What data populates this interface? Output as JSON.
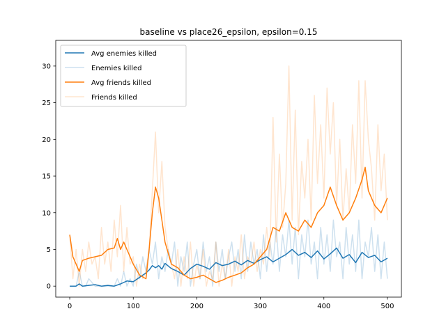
{
  "chart_data": {
    "type": "line",
    "title": "baseline vs place26_epsilon, epsilon=0.15",
    "xlabel": "",
    "ylabel": "",
    "xlim": [
      -22,
      522
    ],
    "ylim": [
      -1.5,
      33.5
    ],
    "xticks": [
      0,
      100,
      200,
      300,
      400,
      500
    ],
    "yticks": [
      0,
      5,
      10,
      15,
      20,
      25,
      30
    ],
    "grid": false,
    "legend_position": "upper-left",
    "series": [
      {
        "name": "Avg enemies killed",
        "color": "#1f77b4",
        "opacity": 1,
        "width": 1.5,
        "x": [
          0,
          10,
          15,
          20,
          30,
          40,
          50,
          60,
          70,
          80,
          90,
          100,
          110,
          120,
          125,
          130,
          135,
          140,
          145,
          150,
          160,
          170,
          180,
          190,
          200,
          210,
          220,
          230,
          240,
          250,
          260,
          270,
          280,
          290,
          300,
          310,
          320,
          330,
          340,
          350,
          360,
          370,
          380,
          390,
          400,
          410,
          420,
          430,
          440,
          450,
          460,
          470,
          480,
          490,
          500
        ],
        "values": [
          0,
          0,
          0.3,
          0,
          0.1,
          0.2,
          0,
          0.1,
          0,
          0.3,
          0.7,
          0.6,
          1.2,
          1.8,
          2.2,
          2.8,
          2.5,
          2.8,
          2.3,
          3.1,
          2.4,
          2.0,
          1.5,
          2.4,
          3.0,
          2.7,
          2.3,
          3.2,
          2.8,
          3.0,
          3.4,
          2.9,
          3.5,
          3.1,
          3.6,
          4.0,
          3.3,
          3.8,
          4.3,
          5.0,
          4.2,
          4.6,
          3.9,
          4.8,
          3.7,
          4.4,
          5.2,
          3.8,
          4.3,
          3.2,
          4.6,
          3.9,
          4.2,
          3.3,
          3.8
        ]
      },
      {
        "name": "Enemies killed",
        "color": "#1f77b4",
        "opacity": 0.22,
        "width": 1.5,
        "x": [
          0,
          10,
          15,
          20,
          25,
          30,
          40,
          50,
          60,
          70,
          75,
          80,
          85,
          90,
          95,
          100,
          105,
          110,
          115,
          120,
          125,
          130,
          135,
          140,
          145,
          150,
          155,
          160,
          165,
          170,
          175,
          180,
          185,
          190,
          195,
          200,
          205,
          210,
          215,
          220,
          225,
          230,
          235,
          240,
          245,
          250,
          255,
          260,
          265,
          270,
          275,
          280,
          285,
          290,
          295,
          300,
          305,
          310,
          315,
          320,
          325,
          330,
          335,
          340,
          345,
          350,
          355,
          360,
          365,
          370,
          375,
          380,
          385,
          390,
          395,
          400,
          405,
          410,
          415,
          420,
          425,
          430,
          435,
          440,
          445,
          450,
          455,
          460,
          465,
          470,
          475,
          480,
          485,
          490,
          495,
          500
        ],
        "values": [
          0,
          0,
          2,
          0,
          0,
          1,
          0,
          0,
          0,
          0,
          1,
          0,
          2,
          0,
          1,
          0,
          3,
          1,
          4,
          2,
          5,
          3,
          6,
          1,
          4,
          2,
          5,
          3,
          6,
          0,
          4,
          2,
          6,
          0,
          3,
          5,
          1,
          6,
          2,
          4,
          0,
          6,
          2,
          5,
          1,
          4,
          6,
          2,
          5,
          1,
          7,
          2,
          6,
          3,
          5,
          1,
          7,
          2,
          6,
          3,
          8,
          2,
          7,
          4,
          9,
          3,
          8,
          1,
          7,
          4,
          9,
          3,
          6,
          1,
          8,
          3,
          7,
          2,
          9,
          4,
          6,
          1,
          8,
          3,
          7,
          2,
          9,
          1,
          6,
          4,
          8,
          2,
          7,
          1,
          6,
          1
        ]
      },
      {
        "name": "Avg friends killed",
        "color": "#ff7f0e",
        "opacity": 1,
        "width": 1.5,
        "x": [
          0,
          5,
          10,
          15,
          20,
          30,
          40,
          50,
          60,
          70,
          75,
          80,
          85,
          90,
          95,
          100,
          110,
          120,
          125,
          130,
          135,
          140,
          145,
          150,
          160,
          170,
          180,
          190,
          200,
          210,
          220,
          230,
          240,
          250,
          260,
          270,
          280,
          290,
          300,
          310,
          320,
          330,
          340,
          350,
          360,
          370,
          380,
          390,
          400,
          410,
          420,
          430,
          440,
          450,
          460,
          465,
          470,
          480,
          490,
          500
        ],
        "values": [
          7,
          4,
          3,
          2,
          3.5,
          3.8,
          4,
          4.2,
          5,
          5.2,
          6.5,
          5,
          6,
          5,
          4,
          3,
          1.5,
          1,
          5,
          10,
          13.5,
          12,
          9,
          6,
          3,
          2.5,
          1.5,
          1,
          1.2,
          1.5,
          1,
          0.5,
          0.8,
          1.2,
          1.5,
          1.8,
          2.5,
          3,
          4,
          5,
          8,
          7.5,
          10,
          8,
          7.5,
          9,
          8,
          10,
          11,
          13.5,
          11,
          9,
          10,
          12,
          14.5,
          16.2,
          13,
          11,
          10,
          12
        ]
      },
      {
        "name": "Friends killed",
        "color": "#ff7f0e",
        "opacity": 0.2,
        "width": 1.5,
        "x": [
          0,
          5,
          10,
          15,
          20,
          25,
          30,
          35,
          40,
          45,
          50,
          55,
          60,
          65,
          70,
          75,
          80,
          85,
          90,
          95,
          100,
          105,
          110,
          115,
          120,
          125,
          130,
          135,
          140,
          145,
          150,
          155,
          160,
          165,
          170,
          175,
          180,
          185,
          190,
          195,
          200,
          205,
          210,
          215,
          220,
          225,
          230,
          235,
          240,
          245,
          250,
          255,
          260,
          265,
          270,
          275,
          280,
          285,
          290,
          295,
          300,
          305,
          310,
          315,
          320,
          325,
          330,
          335,
          340,
          345,
          350,
          355,
          360,
          365,
          370,
          375,
          380,
          385,
          390,
          395,
          400,
          405,
          410,
          415,
          420,
          425,
          430,
          435,
          440,
          445,
          450,
          455,
          460,
          465,
          470,
          475,
          480,
          485,
          490,
          495,
          500
        ],
        "values": [
          7,
          1,
          5,
          0,
          5,
          2,
          6,
          3,
          4,
          1,
          8,
          3,
          6,
          2,
          9,
          4,
          11,
          2,
          8,
          3,
          4,
          0,
          3,
          1,
          2,
          5,
          13,
          21,
          10,
          17,
          8,
          5,
          3,
          1,
          5,
          0,
          4,
          1,
          6,
          0,
          3,
          1,
          5,
          0,
          2,
          1,
          6,
          0,
          3,
          1,
          5,
          0,
          4,
          2,
          7,
          1,
          4,
          3,
          6,
          2,
          5,
          3,
          8,
          4,
          23,
          6,
          18,
          8,
          14,
          30,
          9,
          24,
          7,
          17,
          12,
          20,
          9,
          26,
          14,
          22,
          12,
          27,
          18,
          25,
          11,
          20,
          9,
          16,
          10,
          22,
          14,
          28,
          12,
          28,
          20,
          16,
          9,
          22,
          13,
          18,
          9
        ]
      }
    ]
  }
}
